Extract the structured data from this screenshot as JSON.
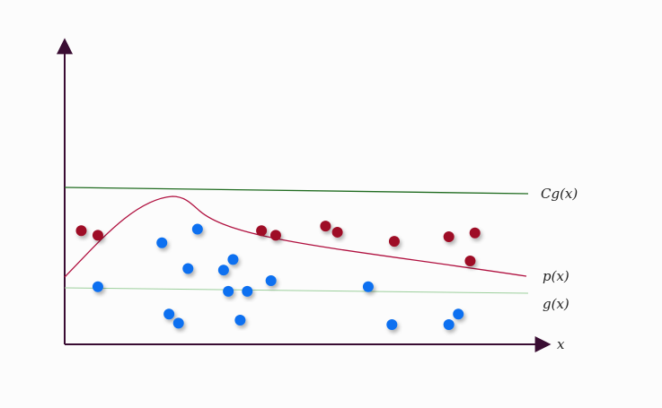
{
  "labels": {
    "x_axis": "x",
    "cg_curve": "Cg(x)",
    "p_curve": "p(x)",
    "g_curve": "g(x)"
  },
  "colors": {
    "axis": "#3a0d33",
    "cg_line": "#1f6b1f",
    "p_line": "#b0103f",
    "g_line": "#9ccf9c",
    "accepted_point": "#0a6ff0",
    "rejected_point": "#9e0b26"
  },
  "points": {
    "rejected": [
      [
        0.035,
        0.75
      ],
      [
        0.07,
        0.72
      ],
      [
        0.415,
        0.75
      ],
      [
        0.445,
        0.72
      ],
      [
        0.55,
        0.78
      ],
      [
        0.575,
        0.74
      ],
      [
        0.695,
        0.68
      ],
      [
        0.81,
        0.71
      ],
      [
        0.865,
        0.735
      ],
      [
        0.855,
        0.55
      ]
    ],
    "accepted": [
      [
        0.07,
        0.38
      ],
      [
        0.205,
        0.67
      ],
      [
        0.22,
        0.2
      ],
      [
        0.24,
        0.14
      ],
      [
        0.26,
        0.5
      ],
      [
        0.28,
        0.76
      ],
      [
        0.335,
        0.49
      ],
      [
        0.355,
        0.56
      ],
      [
        0.345,
        0.35
      ],
      [
        0.385,
        0.35
      ],
      [
        0.37,
        0.16
      ],
      [
        0.435,
        0.42
      ],
      [
        0.64,
        0.38
      ],
      [
        0.69,
        0.13
      ],
      [
        0.81,
        0.13
      ],
      [
        0.83,
        0.2
      ]
    ]
  }
}
